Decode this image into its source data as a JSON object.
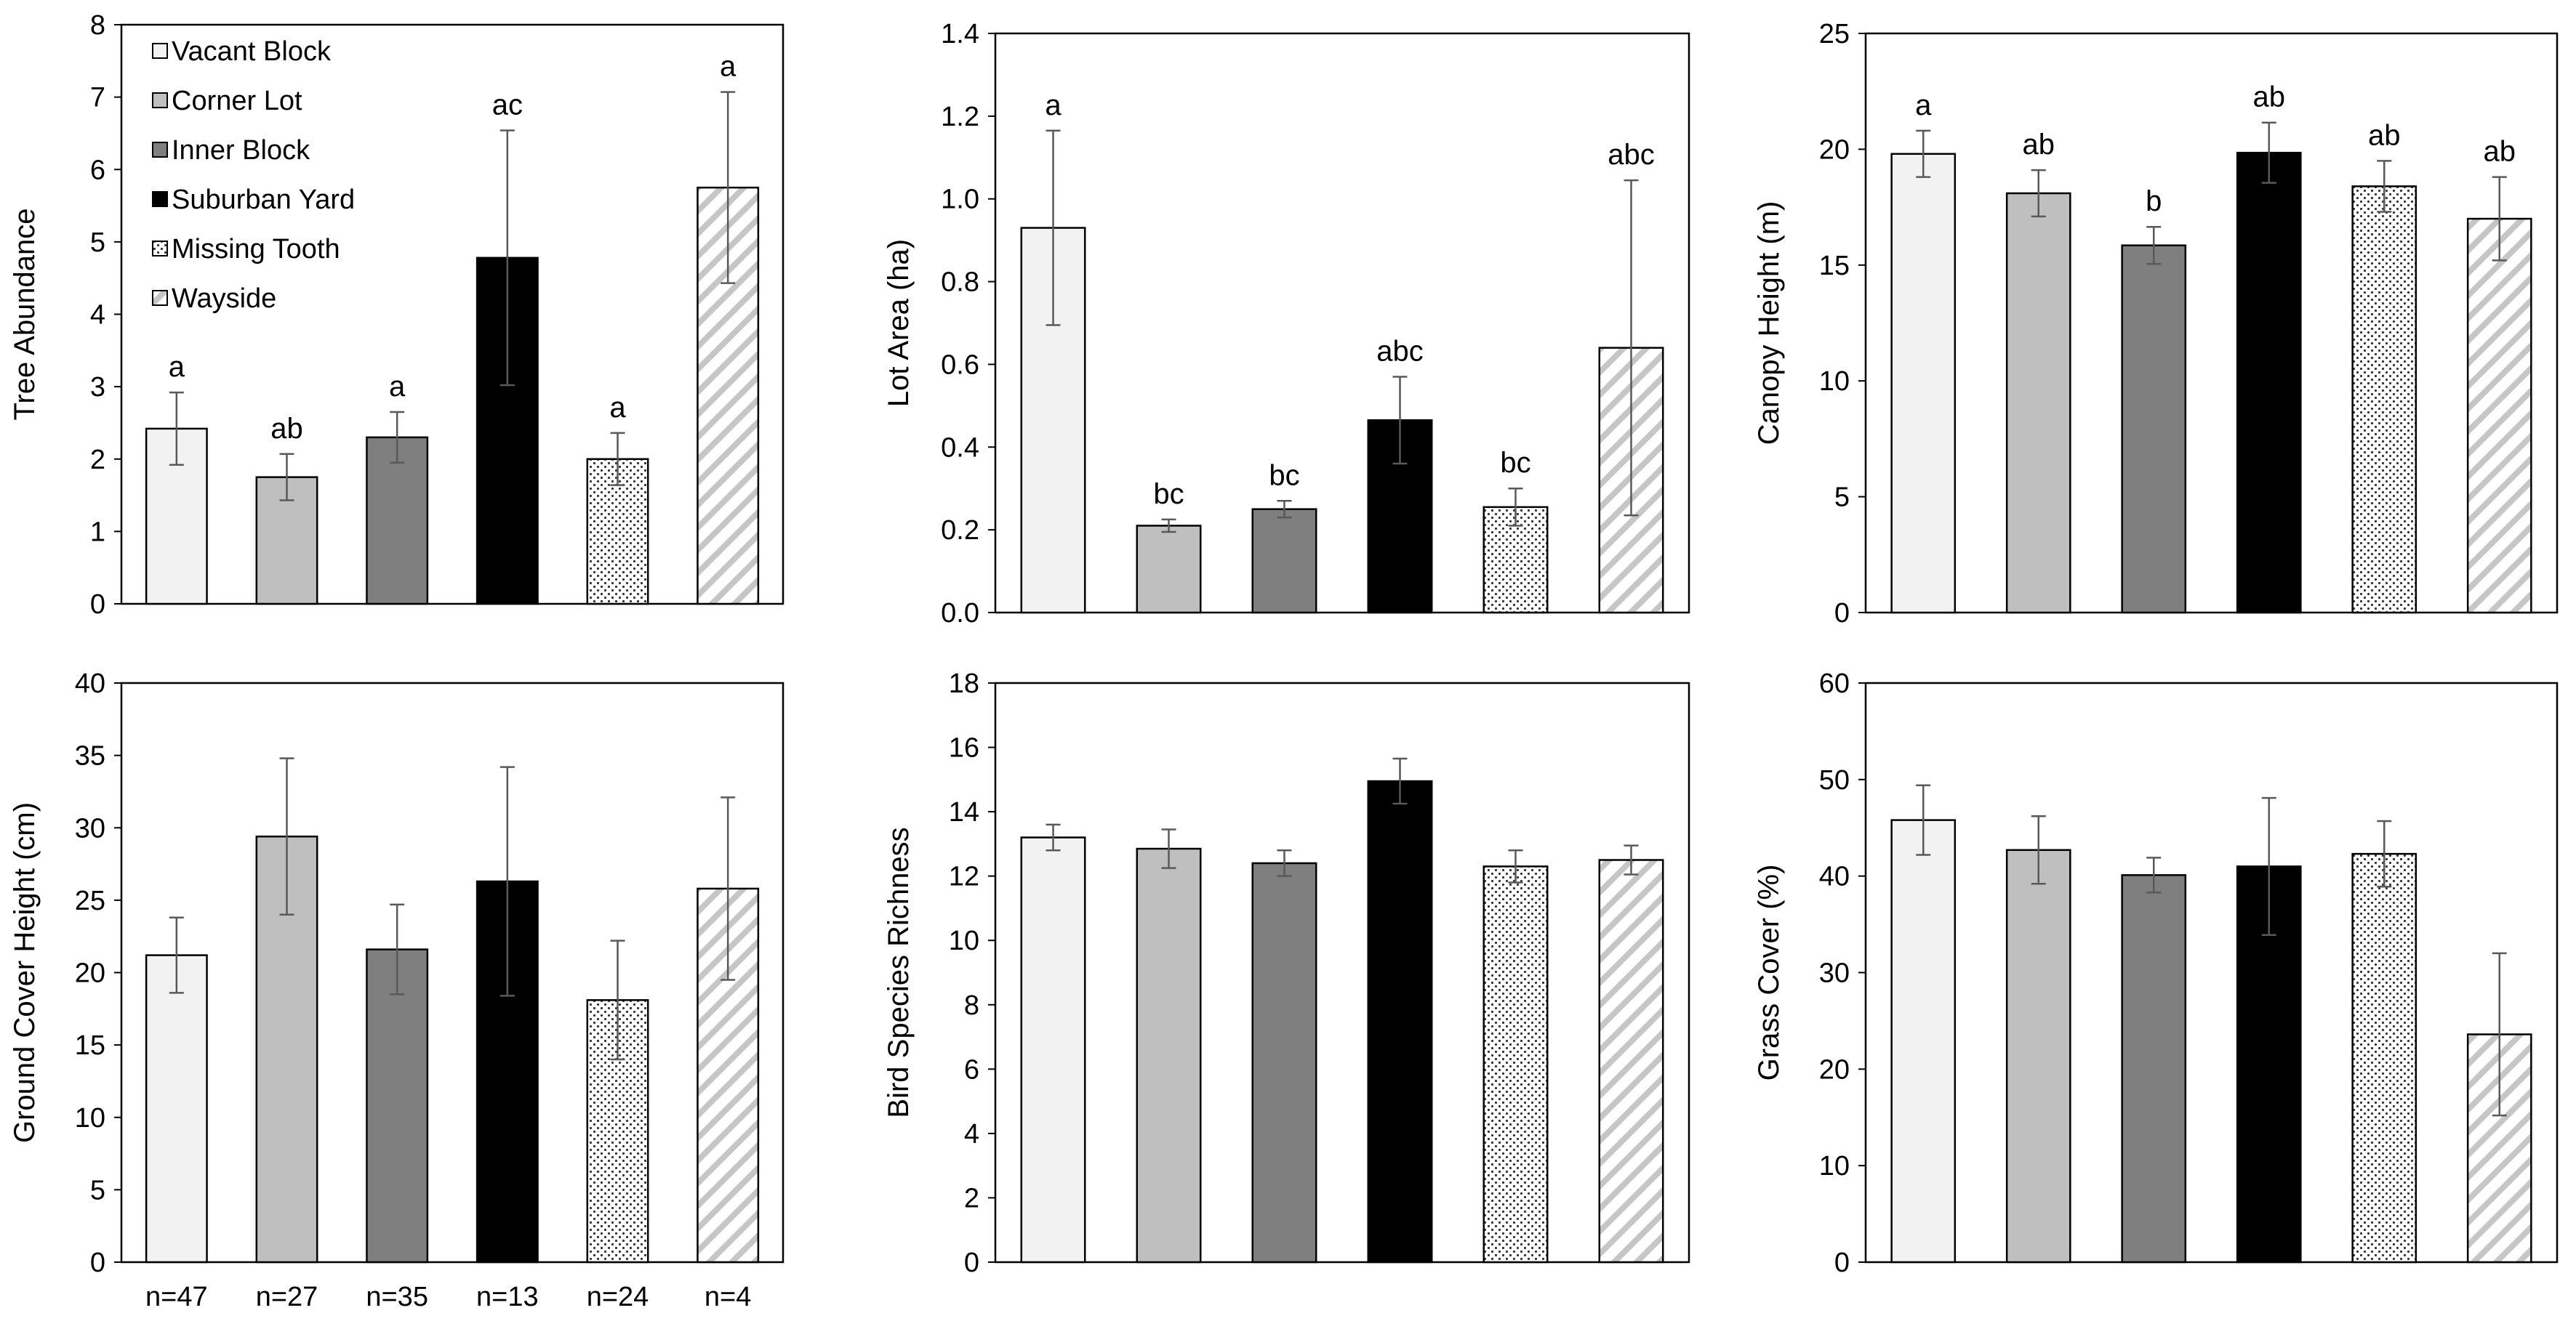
{
  "chart_data": {
    "type": "bar",
    "categories": [
      "Vacant Block",
      "Corner Lot",
      "Inner Block",
      "Suburban Yard",
      "Missing Tooth",
      "Wayside"
    ],
    "category_fills": [
      "light-gray",
      "silver",
      "gray",
      "black",
      "dotted",
      "diagonal-hatch"
    ],
    "sample_sizes": [
      "n=47",
      "n=27",
      "n=35",
      "n=13",
      "n=24",
      "n=4"
    ],
    "legend": {
      "placement": "top-left of first panel",
      "entries": [
        "Vacant Block",
        "Corner Lot",
        "Inner Block",
        "Suburban Yard",
        "Missing Tooth",
        "Wayside"
      ]
    },
    "panels": [
      {
        "ylabel": "Tree Abundance",
        "ylim": [
          0,
          8
        ],
        "yticks": [
          "0",
          "1",
          "2",
          "3",
          "4",
          "5",
          "6",
          "7",
          "8"
        ],
        "values": [
          2.42,
          1.75,
          2.3,
          4.78,
          2.0,
          5.75
        ],
        "errors": [
          0.5,
          0.32,
          0.35,
          1.76,
          0.36,
          1.32
        ],
        "significance": [
          "a",
          "ab",
          "a",
          "ac",
          "a",
          "a"
        ]
      },
      {
        "ylabel": "Lot Area (ha)",
        "ylim": [
          0,
          1.4
        ],
        "yticks": [
          "0.0",
          "0.2",
          "0.4",
          "0.6",
          "0.8",
          "1.0",
          "1.2",
          "1.4"
        ],
        "values": [
          0.93,
          0.21,
          0.25,
          0.465,
          0.255,
          0.64
        ],
        "errors": [
          0.235,
          0.015,
          0.02,
          0.105,
          0.045,
          0.405
        ],
        "significance": [
          "a",
          "bc",
          "bc",
          "abc",
          "bc",
          "abc"
        ]
      },
      {
        "ylabel": "Canopy Height (m)",
        "ylim": [
          0,
          25
        ],
        "yticks": [
          "0",
          "5",
          "10",
          "15",
          "20",
          "25"
        ],
        "values": [
          19.8,
          18.1,
          15.85,
          19.85,
          18.4,
          17.0
        ],
        "errors": [
          1.0,
          1.0,
          0.8,
          1.3,
          1.1,
          1.8
        ],
        "significance": [
          "a",
          "ab",
          "b",
          "ab",
          "ab",
          "ab"
        ]
      },
      {
        "ylabel": "Ground Cover Height (cm)",
        "ylim": [
          0,
          40
        ],
        "yticks": [
          "0",
          "5",
          "10",
          "15",
          "20",
          "25",
          "30",
          "35",
          "40"
        ],
        "values": [
          21.2,
          29.4,
          21.6,
          26.3,
          18.1,
          25.8
        ],
        "errors": [
          2.6,
          5.4,
          3.1,
          7.9,
          4.1,
          6.3
        ],
        "significance": []
      },
      {
        "ylabel": "Bird Species Richness",
        "ylim": [
          0,
          18
        ],
        "yticks": [
          "0",
          "2",
          "4",
          "6",
          "8",
          "10",
          "12",
          "14",
          "16",
          "18"
        ],
        "values": [
          13.2,
          12.85,
          12.4,
          14.95,
          12.3,
          12.5
        ],
        "errors": [
          0.4,
          0.6,
          0.4,
          0.7,
          0.5,
          0.45
        ],
        "significance": []
      },
      {
        "ylabel": "Grass Cover (%)",
        "ylim": [
          0,
          60
        ],
        "yticks": [
          "0",
          "10",
          "20",
          "30",
          "40",
          "50",
          "60"
        ],
        "values": [
          45.8,
          42.7,
          40.1,
          41.0,
          42.3,
          23.6
        ],
        "errors": [
          3.6,
          3.5,
          1.8,
          7.1,
          3.4,
          8.4
        ],
        "significance": []
      }
    ]
  }
}
